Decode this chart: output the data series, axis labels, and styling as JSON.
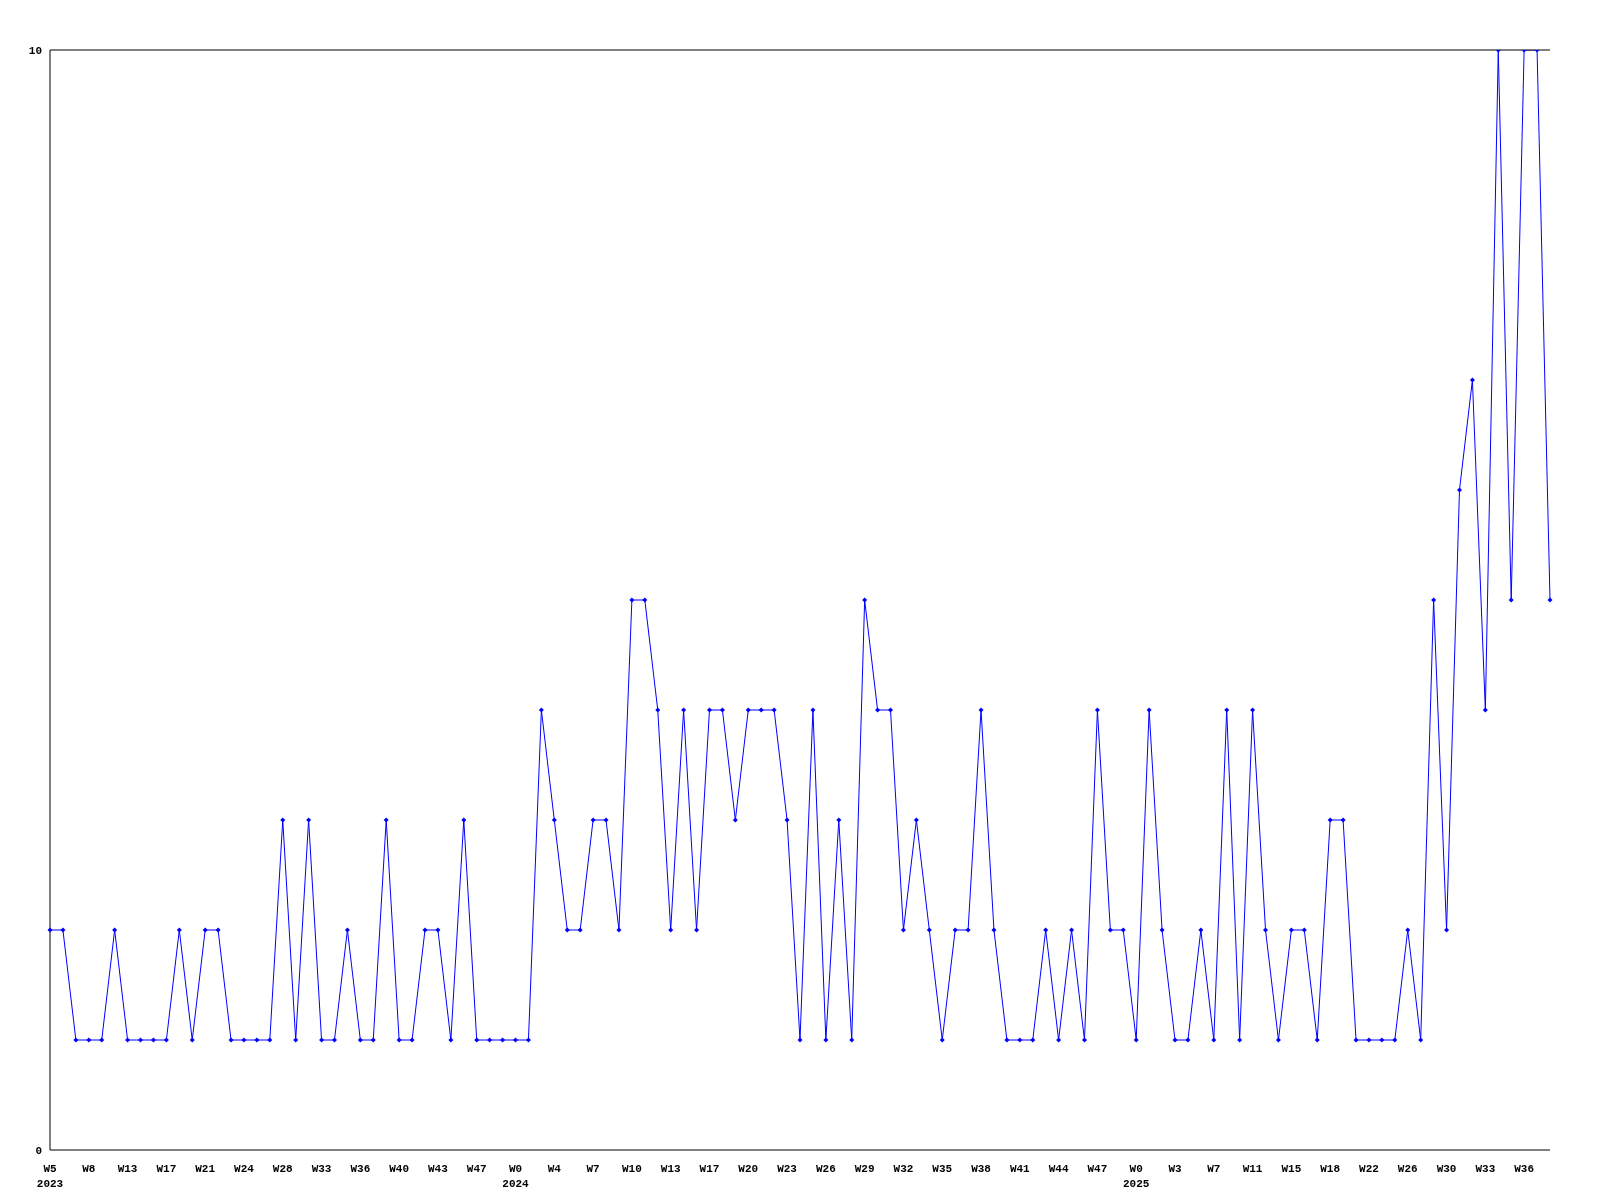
{
  "chart_data": {
    "type": "line",
    "categories": [
      "W5\n2023",
      null,
      null,
      "W8",
      null,
      null,
      "W13",
      null,
      null,
      "W17",
      null,
      null,
      "W21",
      null,
      null,
      "W24",
      null,
      null,
      "W28",
      null,
      null,
      "W33",
      null,
      null,
      "W36",
      null,
      null,
      "W40",
      null,
      null,
      "W43",
      null,
      null,
      "W47",
      null,
      null,
      "W0\n2024",
      null,
      null,
      "W4",
      null,
      null,
      "W7",
      null,
      null,
      "W10",
      null,
      null,
      "W13",
      null,
      null,
      "W17",
      null,
      null,
      "W20",
      null,
      null,
      "W23",
      null,
      null,
      "W26",
      null,
      null,
      "W29",
      null,
      null,
      "W32",
      null,
      null,
      "W35",
      null,
      null,
      "W38",
      null,
      null,
      "W41",
      null,
      null,
      "W44",
      null,
      null,
      "W47",
      null,
      null,
      "W0\n2025",
      null,
      null,
      "W3",
      null,
      null,
      "W7",
      null,
      null,
      "W11",
      null,
      null,
      "W15",
      null,
      null,
      "W18",
      null,
      null,
      "W22",
      null,
      null,
      "W26",
      null,
      null,
      "W30",
      null,
      null,
      "W33",
      null,
      null,
      "W36",
      null,
      null
    ],
    "series": [
      {
        "color": "#0000ff",
        "values": [
          2,
          2,
          1,
          1,
          1,
          2,
          1,
          1,
          1,
          1,
          2,
          1,
          2,
          2,
          1,
          1,
          1,
          1,
          3,
          1,
          3,
          1,
          1,
          2,
          1,
          1,
          3,
          1,
          1,
          2,
          2,
          1,
          3,
          1,
          1,
          1,
          1,
          1,
          4,
          3,
          2,
          2,
          3,
          3,
          2,
          5,
          5,
          4,
          2,
          4,
          2,
          4,
          4,
          3,
          4,
          4,
          4,
          3,
          1,
          4,
          1,
          3,
          1,
          5,
          4,
          4,
          2,
          3,
          2,
          1,
          2,
          2,
          4,
          2,
          1,
          1,
          1,
          2,
          1,
          2,
          1,
          4,
          2,
          2,
          1,
          4,
          2,
          1,
          1,
          2,
          1,
          4,
          1,
          4,
          2,
          1,
          2,
          2,
          1,
          3,
          3,
          1,
          1,
          1,
          1,
          2,
          1,
          5,
          2,
          6,
          7,
          4,
          10,
          5,
          10,
          10,
          5
        ]
      }
    ],
    "ylim": [
      0,
      10
    ],
    "yticks": [
      0,
      10
    ],
    "grid": false,
    "legend": false,
    "marker": "diamond",
    "line_style": "solid"
  }
}
